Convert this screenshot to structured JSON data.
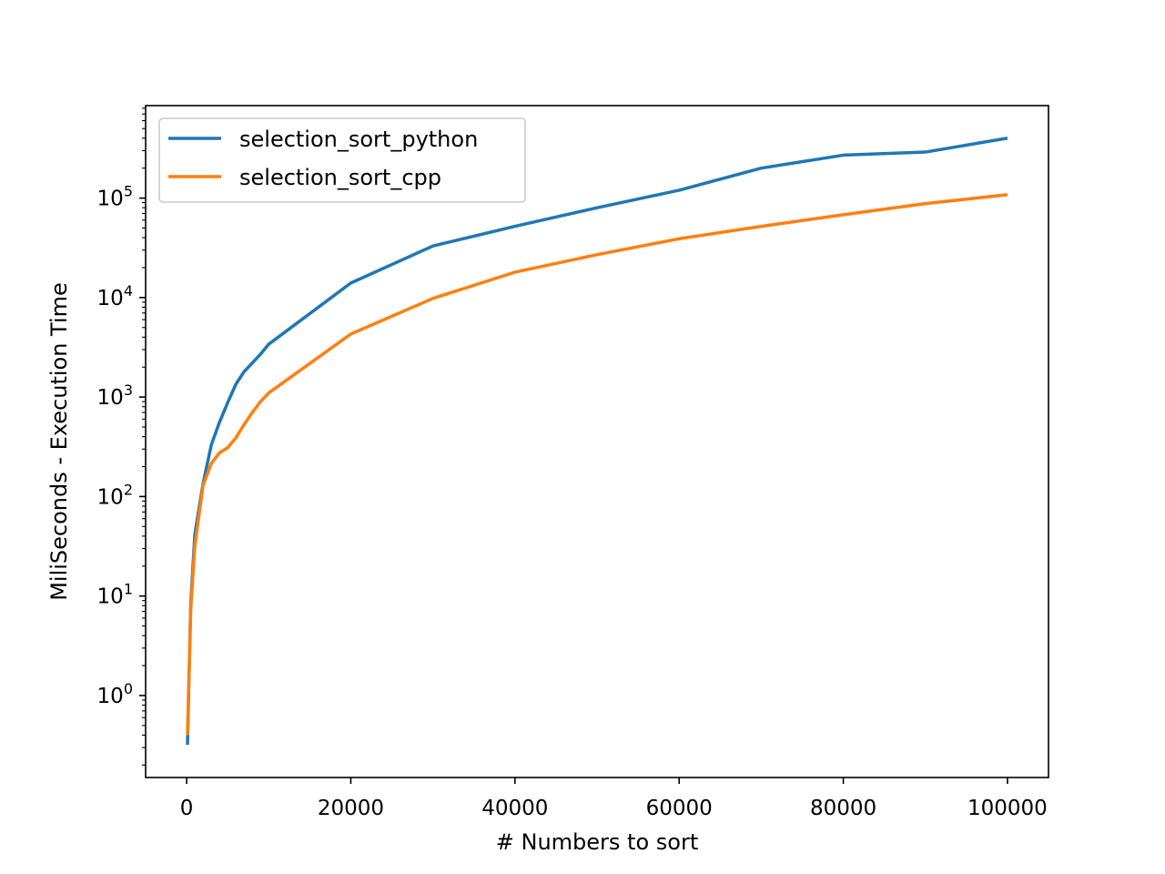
{
  "chart_data": {
    "type": "line",
    "xlabel": "# Numbers to sort",
    "ylabel": "MiliSeconds - Execution Time",
    "xlim": [
      -5000,
      105000
    ],
    "ylim": [
      0.15,
      850000
    ],
    "yscale": "log",
    "grid": false,
    "legend_position": "upper-left",
    "x_ticks": [
      0,
      20000,
      40000,
      60000,
      80000,
      100000
    ],
    "x_tick_labels": [
      "0",
      "20000",
      "40000",
      "60000",
      "80000",
      "100000"
    ],
    "y_tick_values": [
      1,
      10,
      100,
      1000,
      10000,
      100000
    ],
    "y_tick_labels": [
      {
        "base": "10",
        "exp": "0"
      },
      {
        "base": "10",
        "exp": "1"
      },
      {
        "base": "10",
        "exp": "2"
      },
      {
        "base": "10",
        "exp": "3"
      },
      {
        "base": "10",
        "exp": "4"
      },
      {
        "base": "10",
        "exp": "5"
      }
    ],
    "series": [
      {
        "name": "selection_sort_python",
        "color": "#1f77b4",
        "x": [
          100,
          500,
          1000,
          2000,
          3000,
          4000,
          5000,
          6000,
          7000,
          8000,
          9000,
          10000,
          20000,
          30000,
          40000,
          50000,
          60000,
          70000,
          80000,
          90000,
          100000
        ],
        "y": [
          0.32,
          8.5,
          42,
          135,
          330,
          560,
          880,
          1350,
          1800,
          2200,
          2700,
          3400,
          14000,
          33000,
          52000,
          80000,
          120000,
          200000,
          270000,
          290000,
          400000
        ]
      },
      {
        "name": "selection_sort_cpp",
        "color": "#ff7f0e",
        "x": [
          100,
          500,
          1000,
          2000,
          3000,
          4000,
          5000,
          6000,
          7000,
          8000,
          9000,
          10000,
          20000,
          30000,
          40000,
          50000,
          60000,
          70000,
          80000,
          90000,
          100000
        ],
        "y": [
          0.4,
          7.5,
          32,
          130,
          215,
          275,
          310,
          390,
          530,
          700,
          900,
          1100,
          4300,
          9800,
          18000,
          27000,
          39000,
          52000,
          68000,
          88000,
          108000
        ]
      }
    ]
  }
}
